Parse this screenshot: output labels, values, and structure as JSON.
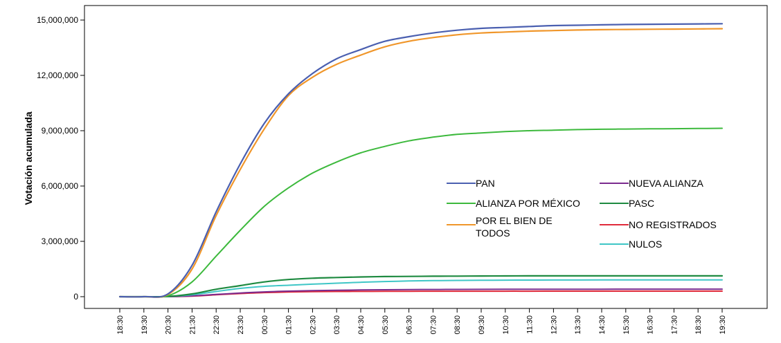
{
  "chart_data": {
    "type": "line",
    "ylabel": "Votación acumulada",
    "xlabel": "",
    "ylim": [
      0,
      15000000
    ],
    "yticks": [
      0,
      3000000,
      6000000,
      9000000,
      12000000,
      15000000
    ],
    "ytick_labels": [
      "0",
      "3,000,000",
      "6,000,000",
      "9,000,000",
      "12,000,000",
      "15,000,000"
    ],
    "x": [
      "18:30",
      "19:30",
      "20:30",
      "21:30",
      "22:30",
      "23:30",
      "00:30",
      "01:30",
      "02:30",
      "03:30",
      "04:30",
      "05:30",
      "06:30",
      "07:30",
      "08:30",
      "09:30",
      "10:30",
      "11:30",
      "12:30",
      "13:30",
      "14:30",
      "15:30",
      "16:30",
      "17:30",
      "18:30",
      "19:30"
    ],
    "legend_position": "center-right",
    "series": [
      {
        "name": "PAN",
        "color": "#4a5fb0",
        "width": 2.2,
        "values": [
          0,
          0,
          150000,
          1700000,
          4600000,
          7200000,
          9400000,
          11000000,
          12100000,
          12900000,
          13400000,
          13850000,
          14100000,
          14300000,
          14450000,
          14550000,
          14600000,
          14650000,
          14700000,
          14720000,
          14740000,
          14760000,
          14770000,
          14780000,
          14790000,
          14800000
        ]
      },
      {
        "name": "ALIANZA POR MÉXICO",
        "color": "#3cb93c",
        "width": 2,
        "values": [
          0,
          0,
          50000,
          800000,
          2200000,
          3600000,
          4900000,
          5900000,
          6700000,
          7300000,
          7800000,
          8150000,
          8450000,
          8650000,
          8800000,
          8880000,
          8950000,
          9000000,
          9030000,
          9060000,
          9080000,
          9090000,
          9100000,
          9110000,
          9120000,
          9130000
        ]
      },
      {
        "name": "POR EL BIEN DE TODOS",
        "color": "#f0962a",
        "width": 2.2,
        "values": [
          0,
          0,
          120000,
          1500000,
          4400000,
          6900000,
          9100000,
          10900000,
          11900000,
          12600000,
          13100000,
          13550000,
          13850000,
          14050000,
          14200000,
          14300000,
          14350000,
          14400000,
          14430000,
          14460000,
          14480000,
          14490000,
          14500000,
          14510000,
          14520000,
          14530000
        ]
      },
      {
        "name": "NUEVA ALIANZA",
        "color": "#7b2a8e",
        "width": 2,
        "values": [
          0,
          0,
          0,
          40000,
          120000,
          200000,
          260000,
          300000,
          330000,
          350000,
          365000,
          375000,
          385000,
          390000,
          395000,
          398000,
          400000,
          402000,
          404000,
          405000,
          406000,
          407000,
          408000,
          409000,
          410000,
          410000
        ]
      },
      {
        "name": "PASC",
        "color": "#1e8a40",
        "width": 2.2,
        "values": [
          0,
          0,
          10000,
          150000,
          400000,
          600000,
          800000,
          930000,
          1000000,
          1040000,
          1070000,
          1090000,
          1100000,
          1110000,
          1115000,
          1120000,
          1125000,
          1128000,
          1130000,
          1130000,
          1130000,
          1130000,
          1130000,
          1130000,
          1130000,
          1130000
        ]
      },
      {
        "name": "NO REGISTRADOS",
        "color": "#e02a3a",
        "width": 2,
        "values": [
          0,
          0,
          0,
          30000,
          100000,
          170000,
          220000,
          250000,
          270000,
          280000,
          285000,
          290000,
          293000,
          295000,
          296000,
          297000,
          298000,
          298000,
          299000,
          299000,
          300000,
          300000,
          300000,
          300000,
          300000,
          300000
        ]
      },
      {
        "name": "NULOS",
        "color": "#3ec6c6",
        "width": 2,
        "values": [
          0,
          0,
          10000,
          100000,
          280000,
          450000,
          560000,
          620000,
          680000,
          730000,
          780000,
          820000,
          850000,
          870000,
          880000,
          890000,
          895000,
          900000,
          902000,
          904000,
          906000,
          908000,
          909000,
          910000,
          910000,
          910000
        ]
      }
    ],
    "legend": [
      [
        "PAN"
      ],
      [
        "ALIANZA POR MÉXICO"
      ],
      [
        "POR EL BIEN DE",
        "TODOS"
      ],
      [
        "NUEVA ALIANZA"
      ],
      [
        "PASC"
      ],
      [
        "NO REGISTRADOS"
      ],
      [
        "NULOS"
      ]
    ]
  }
}
